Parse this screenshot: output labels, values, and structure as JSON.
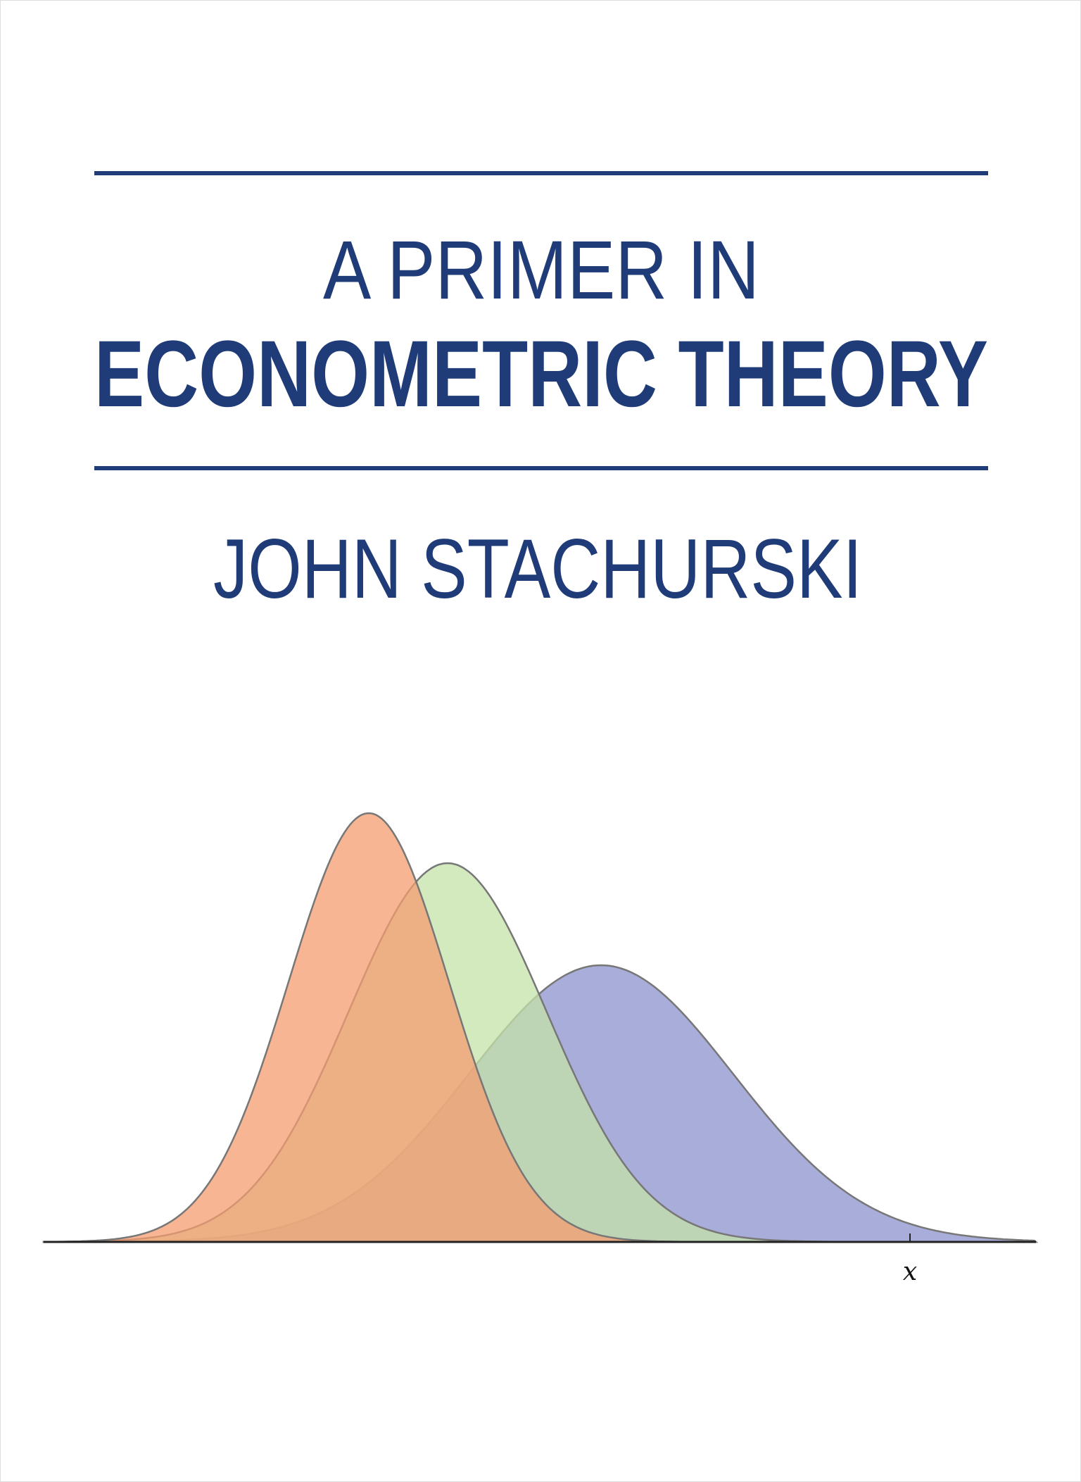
{
  "cover": {
    "title_line1": "A PRIMER IN",
    "title_line2": "ECONOMETRIC THEORY",
    "author": "JOHN STACHURSKI",
    "axis_label": "x"
  }
}
